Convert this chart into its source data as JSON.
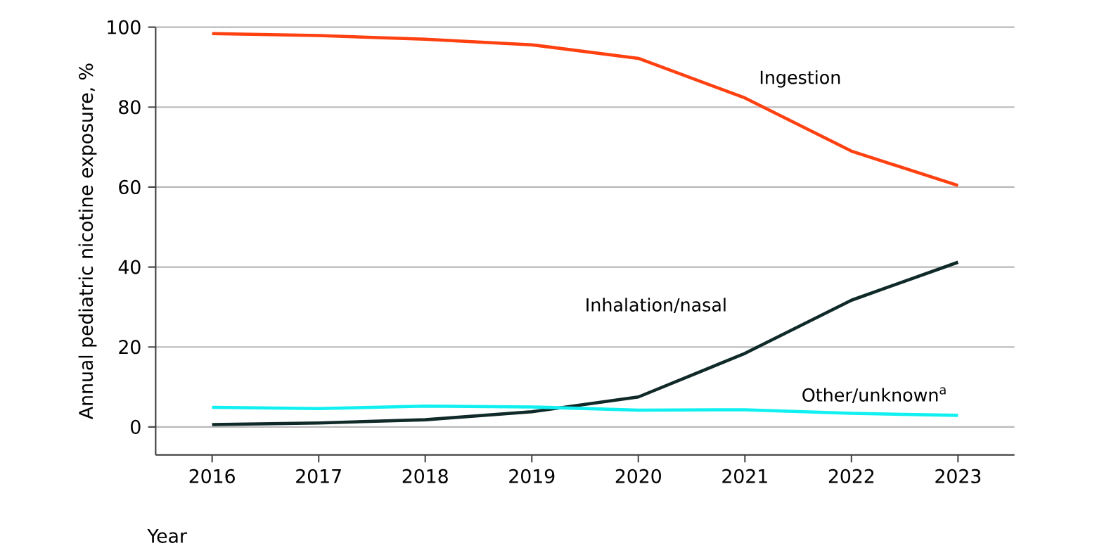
{
  "chart_data": {
    "type": "line",
    "xlabel": "Year",
    "ylabel": "Annual pediatric nicotine exposure, %",
    "x": [
      2016,
      2017,
      2018,
      2019,
      2020,
      2021,
      2022,
      2023
    ],
    "xlim": [
      2015.47,
      2023.53
    ],
    "xticks": [
      2016,
      2017,
      2018,
      2019,
      2020,
      2021,
      2022,
      2023
    ],
    "ylim": [
      -7,
      100
    ],
    "yticks": [
      0,
      20,
      40,
      60,
      80,
      100
    ],
    "grid": "y",
    "marker": "none",
    "line_style": "solid",
    "series": [
      {
        "name": "Ingestion",
        "color": "#ff4010",
        "values": [
          98.4,
          97.9,
          97.0,
          95.6,
          92.2,
          82.3,
          69.0,
          60.4
        ]
      },
      {
        "name": "Inhalation/nasal",
        "color": "#0f2a28",
        "values": [
          0.6,
          1.0,
          1.8,
          3.8,
          7.5,
          18.4,
          31.7,
          41.2
        ]
      },
      {
        "name": "Other/unknown$^{a}$",
        "color": "#10f0f0",
        "values": [
          4.9,
          4.6,
          5.2,
          5.0,
          4.2,
          4.3,
          3.4,
          2.9
        ]
      }
    ]
  }
}
